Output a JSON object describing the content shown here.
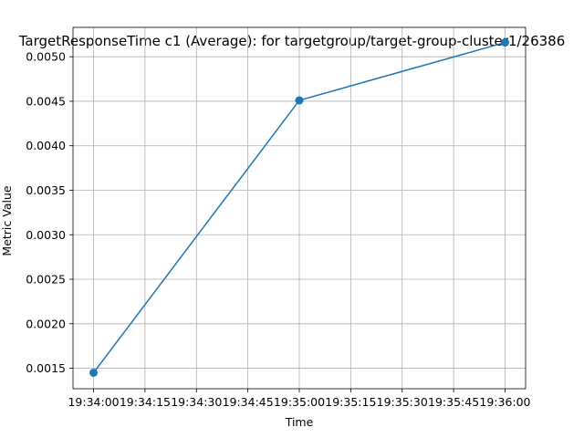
{
  "chart_data": {
    "type": "line",
    "title": "TargetResponseTime c1 (Average):  for targetgroup/target-group-cluster1/26386",
    "xlabel": "Time",
    "ylabel": "Metric Value",
    "x_tick_labels": [
      "19:34:00",
      "19:34:15",
      "19:34:30",
      "19:34:45",
      "19:35:00",
      "19:35:15",
      "19:35:30",
      "19:35:45",
      "19:36:00"
    ],
    "y_tick_labels": [
      "0.0015",
      "0.0020",
      "0.0025",
      "0.0030",
      "0.0035",
      "0.0040",
      "0.0045",
      "0.0050"
    ],
    "y_ticks": [
      0.0015,
      0.002,
      0.0025,
      0.003,
      0.0035,
      0.004,
      0.0045,
      0.005
    ],
    "xlim": [
      "19:33:54",
      "19:36:06"
    ],
    "ylim": [
      0.00127,
      0.00533
    ],
    "grid": true,
    "series": [
      {
        "x": [
          "19:34:00",
          "19:35:00",
          "19:36:00"
        ],
        "values": [
          0.00145,
          0.00451,
          0.00516
        ],
        "color": "#1f77b4",
        "marker": "circle"
      }
    ]
  }
}
